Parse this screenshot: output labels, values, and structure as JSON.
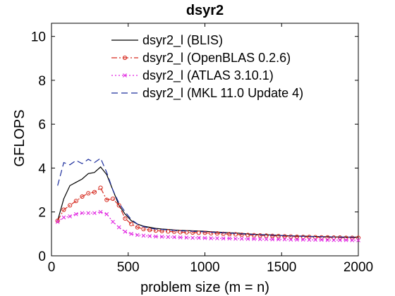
{
  "chart_data": {
    "type": "line",
    "title": "dsyr2",
    "xlabel": "problem size (m = n)",
    "ylabel": "GFLOPS",
    "xlim": [
      0,
      2000
    ],
    "ylim": [
      0,
      10.6
    ],
    "xticks": [
      0,
      500,
      1000,
      1500,
      2000
    ],
    "yticks": [
      0,
      2,
      4,
      6,
      8,
      10
    ],
    "grid": false,
    "legend_position": "top",
    "x": [
      40,
      80,
      120,
      160,
      200,
      240,
      280,
      320,
      360,
      400,
      440,
      480,
      520,
      560,
      600,
      640,
      680,
      720,
      760,
      800,
      840,
      880,
      920,
      960,
      1000,
      1040,
      1080,
      1120,
      1160,
      1200,
      1240,
      1280,
      1320,
      1360,
      1400,
      1440,
      1480,
      1520,
      1560,
      1600,
      1640,
      1680,
      1720,
      1760,
      1800,
      1840,
      1880,
      1920,
      1960,
      2000
    ],
    "series": [
      {
        "name": "dsyr2_l (BLIS)",
        "color": "#000000",
        "dash": "solid",
        "marker": "none",
        "values": [
          1.6,
          2.6,
          3.2,
          3.35,
          3.5,
          3.75,
          3.8,
          4.05,
          3.7,
          3.0,
          2.3,
          1.9,
          1.6,
          1.45,
          1.35,
          1.3,
          1.25,
          1.22,
          1.2,
          1.18,
          1.16,
          1.15,
          1.14,
          1.13,
          1.12,
          1.1,
          1.08,
          1.07,
          1.05,
          1.04,
          1.02,
          1.0,
          0.98,
          0.97,
          0.96,
          0.95,
          0.93,
          0.92,
          0.91,
          0.9,
          0.9,
          0.89,
          0.88,
          0.87,
          0.87,
          0.86,
          0.86,
          0.85,
          0.85,
          0.85
        ]
      },
      {
        "name": "dsyr2_l (OpenBLAS 0.2.6)",
        "color": "#d62a1f",
        "dash": "dashdot",
        "marker": "circle",
        "values": [
          1.6,
          2.1,
          2.3,
          2.5,
          2.7,
          2.85,
          2.9,
          3.1,
          2.55,
          2.6,
          2.3,
          1.7,
          1.45,
          1.3,
          1.22,
          1.18,
          1.15,
          1.13,
          1.11,
          1.1,
          1.08,
          1.07,
          1.06,
          1.05,
          1.05,
          1.03,
          1.02,
          1.0,
          0.99,
          0.98,
          0.96,
          0.95,
          0.94,
          0.93,
          0.92,
          0.91,
          0.9,
          0.89,
          0.88,
          0.87,
          0.86,
          0.86,
          0.85,
          0.84,
          0.84,
          0.83,
          0.83,
          0.82,
          0.82,
          0.82
        ]
      },
      {
        "name": "dsyr2_l (ATLAS 3.10.1)",
        "color": "#e020e0",
        "dash": "dotted",
        "marker": "x",
        "values": [
          1.55,
          1.75,
          1.8,
          1.9,
          1.95,
          1.95,
          1.95,
          2.0,
          1.9,
          1.55,
          1.3,
          1.1,
          1.0,
          0.95,
          0.92,
          0.9,
          0.88,
          0.87,
          0.86,
          0.85,
          0.84,
          0.83,
          0.82,
          0.82,
          0.81,
          0.8,
          0.8,
          0.79,
          0.79,
          0.78,
          0.78,
          0.77,
          0.77,
          0.76,
          0.76,
          0.75,
          0.75,
          0.75,
          0.74,
          0.74,
          0.74,
          0.73,
          0.73,
          0.73,
          0.72,
          0.72,
          0.72,
          0.72,
          0.71,
          0.71
        ]
      },
      {
        "name": "dsyr2_l (MKL 11.0 Update 4)",
        "color": "#1c2d9c",
        "dash": "dashed",
        "marker": "none",
        "values": [
          3.2,
          4.25,
          4.15,
          4.35,
          4.2,
          4.4,
          4.25,
          4.45,
          3.8,
          3.0,
          2.4,
          2.0,
          1.65,
          1.45,
          1.33,
          1.26,
          1.22,
          1.2,
          1.18,
          1.16,
          1.14,
          1.13,
          1.12,
          1.1,
          1.1,
          1.08,
          1.06,
          1.05,
          1.03,
          1.02,
          1.0,
          0.99,
          0.97,
          0.96,
          0.95,
          0.94,
          0.93,
          0.92,
          0.91,
          0.9,
          0.89,
          0.88,
          0.88,
          0.87,
          0.86,
          0.86,
          0.85,
          0.85,
          0.85,
          0.84
        ]
      }
    ]
  }
}
